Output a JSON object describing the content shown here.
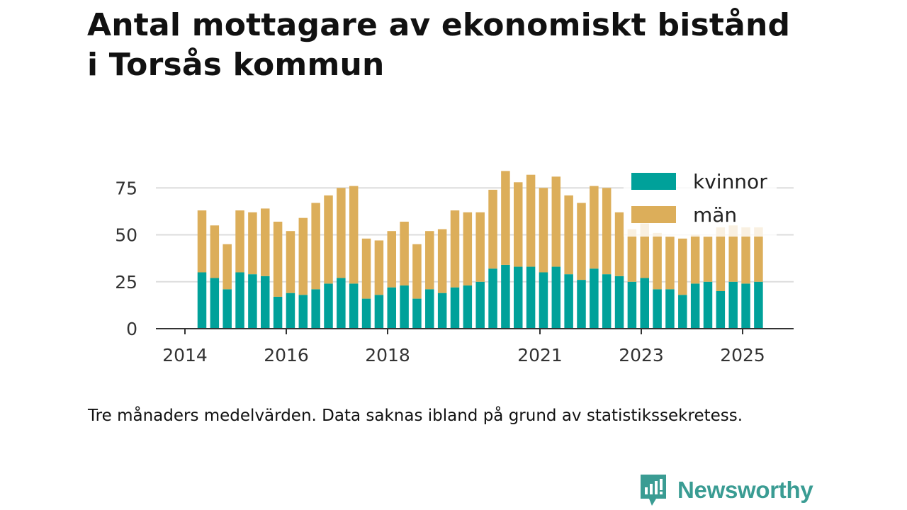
{
  "title": {
    "line1": "Antal mottagare av ekonomiskt bistånd",
    "line2": "i Torsås kommun"
  },
  "caption": "Tre månaders medelvärden. Data saknas ibland på grund av statistikssekretess.",
  "brand": {
    "name": "Newsworthy",
    "icon": "newsworthy-logo-icon",
    "color": "#3a9c93"
  },
  "colors": {
    "kvinnor": "#00a19a",
    "man": "#dcae5a",
    "grid": "#dddddd",
    "axis": "#333333"
  },
  "chart_data": {
    "type": "bar",
    "stacked": true,
    "title": "Antal mottagare av ekonomiskt bistånd i Torsås kommun",
    "ylim": [
      0,
      85
    ],
    "yticks": [
      0,
      25,
      50,
      75
    ],
    "xticks": [
      "2014",
      "2016",
      "2018",
      "2021",
      "2023",
      "2025"
    ],
    "grid": true,
    "legend_position": "top-right",
    "series": [
      {
        "name": "kvinnor",
        "values": [
          30,
          27,
          21,
          30,
          29,
          28,
          17,
          19,
          18,
          21,
          24,
          27,
          24,
          16,
          18,
          22,
          23,
          16,
          21,
          19,
          22,
          23,
          25,
          32,
          34,
          33,
          33,
          30,
          33,
          29,
          26,
          32,
          29,
          28,
          25,
          27,
          21,
          21,
          18,
          24,
          25,
          20,
          25,
          24,
          25
        ]
      },
      {
        "name": "män",
        "values": [
          33,
          28,
          24,
          33,
          33,
          36,
          40,
          33,
          41,
          46,
          47,
          48,
          52,
          32,
          29,
          30,
          34,
          29,
          31,
          34,
          41,
          39,
          37,
          42,
          50,
          45,
          49,
          45,
          48,
          42,
          41,
          44,
          46,
          34,
          28,
          29,
          30,
          28,
          30,
          26,
          24,
          34,
          30,
          30,
          29
        ]
      }
    ]
  }
}
